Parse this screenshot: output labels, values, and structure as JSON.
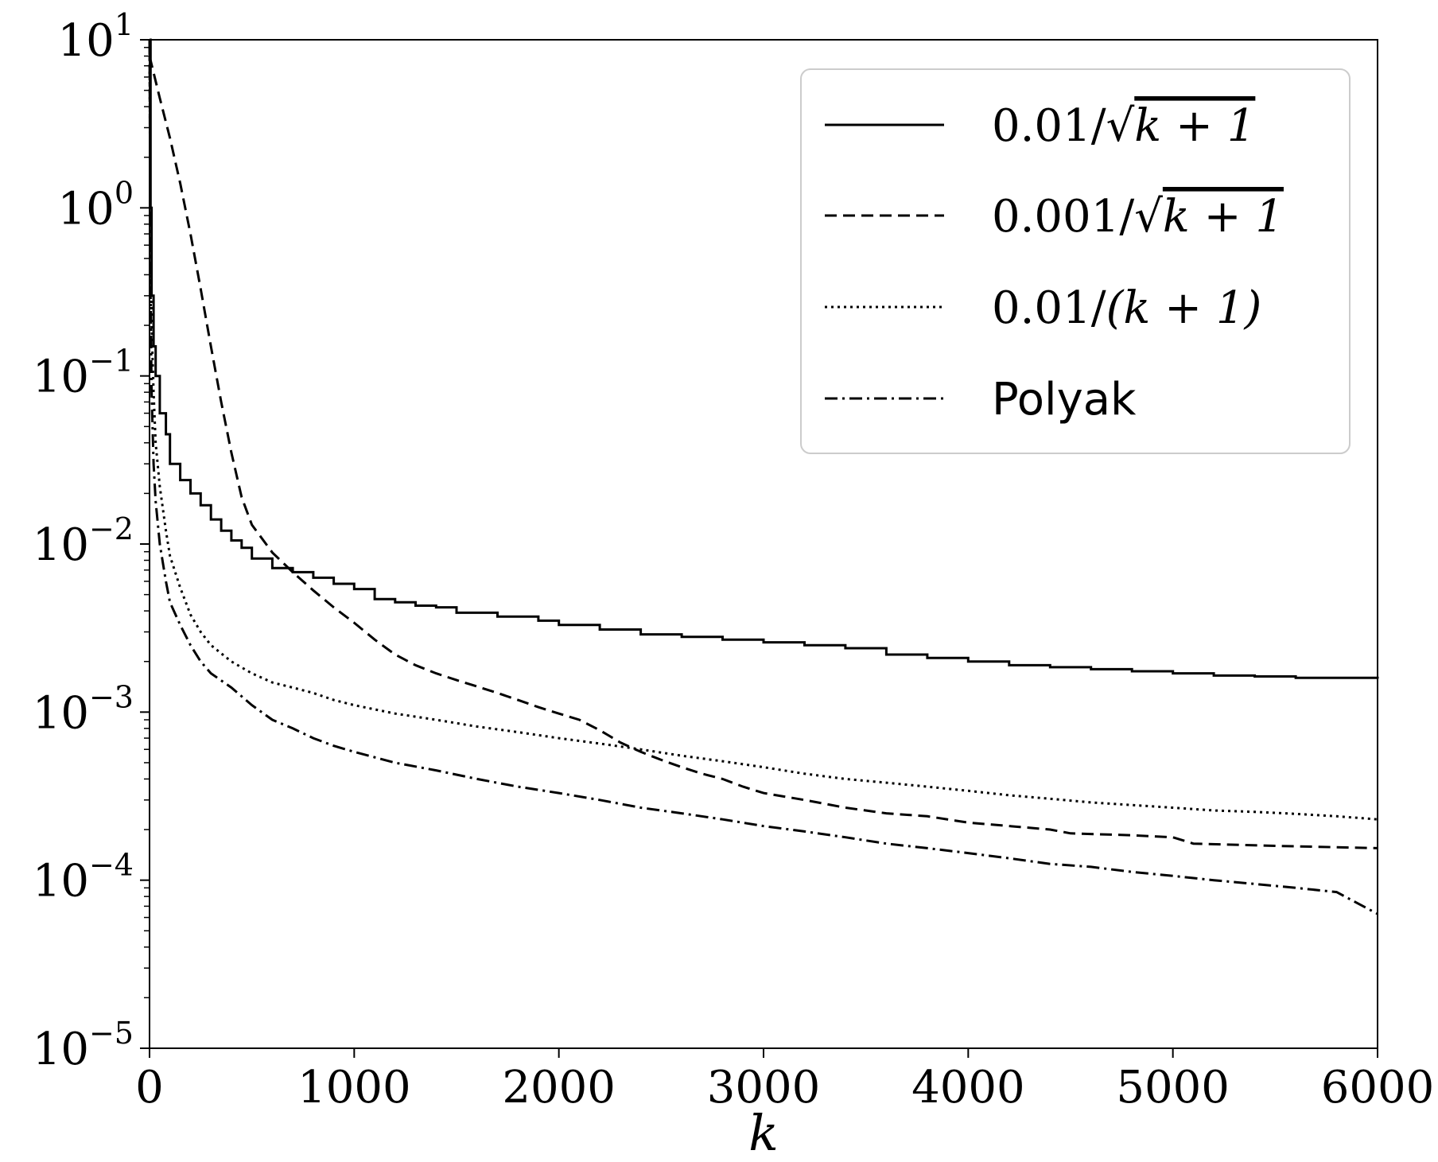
{
  "chart_data": {
    "type": "line",
    "title": "",
    "xlabel": "k",
    "ylabel": "",
    "xlim": [
      0,
      6000
    ],
    "ylim": [
      1e-05,
      10
    ],
    "yscale": "log",
    "grid": false,
    "legend_position": "top-right",
    "x_ticks": [
      0,
      1000,
      2000,
      3000,
      4000,
      5000,
      6000
    ],
    "y_ticks": [
      {
        "value": 10,
        "base": "10",
        "exp": "1"
      },
      {
        "value": 1,
        "base": "10",
        "exp": "0"
      },
      {
        "value": 0.1,
        "base": "10",
        "exp": "−1"
      },
      {
        "value": 0.01,
        "base": "10",
        "exp": "−2"
      },
      {
        "value": 0.001,
        "base": "10",
        "exp": "−3"
      },
      {
        "value": 0.0001,
        "base": "10",
        "exp": "−4"
      },
      {
        "value": 1e-05,
        "base": "10",
        "exp": "−5"
      }
    ],
    "series": [
      {
        "name": "0.01/√(k+1)",
        "legend": {
          "prefix": "0.01/",
          "radicand": "k + 1",
          "sqrt": true
        },
        "style": "solid",
        "step": true,
        "points": [
          [
            0,
            10
          ],
          [
            5,
            1.0
          ],
          [
            10,
            0.3
          ],
          [
            20,
            0.15
          ],
          [
            30,
            0.1
          ],
          [
            50,
            0.06
          ],
          [
            80,
            0.045
          ],
          [
            100,
            0.03
          ],
          [
            150,
            0.024
          ],
          [
            200,
            0.02
          ],
          [
            250,
            0.017
          ],
          [
            300,
            0.014
          ],
          [
            350,
            0.012
          ],
          [
            400,
            0.0105
          ],
          [
            450,
            0.0095
          ],
          [
            500,
            0.0082
          ],
          [
            600,
            0.0072
          ],
          [
            700,
            0.0068
          ],
          [
            800,
            0.0063
          ],
          [
            900,
            0.0058
          ],
          [
            1000,
            0.0054
          ],
          [
            1100,
            0.0047
          ],
          [
            1200,
            0.0045
          ],
          [
            1300,
            0.0043
          ],
          [
            1400,
            0.0042
          ],
          [
            1500,
            0.0039
          ],
          [
            1700,
            0.0037
          ],
          [
            1900,
            0.0035
          ],
          [
            2000,
            0.0033
          ],
          [
            2200,
            0.0031
          ],
          [
            2400,
            0.0029
          ],
          [
            2600,
            0.0028
          ],
          [
            2800,
            0.0027
          ],
          [
            3000,
            0.0026
          ],
          [
            3200,
            0.0025
          ],
          [
            3400,
            0.0024
          ],
          [
            3600,
            0.0022
          ],
          [
            3800,
            0.0021
          ],
          [
            4000,
            0.002
          ],
          [
            4200,
            0.0019
          ],
          [
            4400,
            0.00185
          ],
          [
            4600,
            0.0018
          ],
          [
            4800,
            0.00175
          ],
          [
            5000,
            0.0017
          ],
          [
            5200,
            0.00165
          ],
          [
            5400,
            0.00163
          ],
          [
            5600,
            0.0016
          ],
          [
            6000,
            0.00158
          ]
        ]
      },
      {
        "name": "0.001/√(k+1)",
        "legend": {
          "prefix": "0.001/",
          "radicand": "k + 1",
          "sqrt": true
        },
        "style": "dashed",
        "step": false,
        "points": [
          [
            0,
            8
          ],
          [
            50,
            4.5
          ],
          [
            100,
            2.6
          ],
          [
            150,
            1.4
          ],
          [
            200,
            0.7
          ],
          [
            250,
            0.33
          ],
          [
            300,
            0.15
          ],
          [
            350,
            0.07
          ],
          [
            400,
            0.035
          ],
          [
            450,
            0.019
          ],
          [
            500,
            0.013
          ],
          [
            600,
            0.0089
          ],
          [
            700,
            0.0068
          ],
          [
            800,
            0.0053
          ],
          [
            900,
            0.0042
          ],
          [
            1000,
            0.0034
          ],
          [
            1100,
            0.0027
          ],
          [
            1200,
            0.0022
          ],
          [
            1300,
            0.0019
          ],
          [
            1400,
            0.0017
          ],
          [
            1500,
            0.00155
          ],
          [
            1600,
            0.00142
          ],
          [
            1700,
            0.0013
          ],
          [
            1800,
            0.00118
          ],
          [
            1900,
            0.00107
          ],
          [
            2000,
            0.00098
          ],
          [
            2100,
            0.0009
          ],
          [
            2200,
            0.00078
          ],
          [
            2300,
            0.00066
          ],
          [
            2400,
            0.00058
          ],
          [
            2500,
            0.00052
          ],
          [
            2600,
            0.00047
          ],
          [
            2700,
            0.00043
          ],
          [
            2800,
            0.0004
          ],
          [
            2900,
            0.00036
          ],
          [
            3000,
            0.00033
          ],
          [
            3200,
            0.0003
          ],
          [
            3400,
            0.00027
          ],
          [
            3600,
            0.00025
          ],
          [
            3800,
            0.00024
          ],
          [
            4000,
            0.00022
          ],
          [
            4200,
            0.00021
          ],
          [
            4400,
            0.0002
          ],
          [
            4500,
            0.00019
          ],
          [
            4800,
            0.000185
          ],
          [
            5000,
            0.00018
          ],
          [
            5100,
            0.000165
          ],
          [
            5500,
            0.00016
          ],
          [
            6000,
            0.000155
          ]
        ]
      },
      {
        "name": "0.01/(k+1)",
        "legend": {
          "prefix": "0.01/",
          "radicand": "(k + 1)",
          "sqrt": false
        },
        "style": "dotted",
        "step": false,
        "points": [
          [
            0,
            10
          ],
          [
            5,
            0.5
          ],
          [
            10,
            0.2
          ],
          [
            20,
            0.08
          ],
          [
            30,
            0.04
          ],
          [
            50,
            0.022
          ],
          [
            80,
            0.012
          ],
          [
            100,
            0.0085
          ],
          [
            150,
            0.0055
          ],
          [
            200,
            0.0038
          ],
          [
            250,
            0.003
          ],
          [
            300,
            0.0025
          ],
          [
            400,
            0.002
          ],
          [
            500,
            0.0017
          ],
          [
            600,
            0.0015
          ],
          [
            700,
            0.0014
          ],
          [
            800,
            0.0013
          ],
          [
            900,
            0.00118
          ],
          [
            1000,
            0.0011
          ],
          [
            1200,
            0.00098
          ],
          [
            1400,
            0.0009
          ],
          [
            1600,
            0.00082
          ],
          [
            1800,
            0.00076
          ],
          [
            2000,
            0.0007
          ],
          [
            2200,
            0.00065
          ],
          [
            2400,
            0.0006
          ],
          [
            2600,
            0.00055
          ],
          [
            2800,
            0.00051
          ],
          [
            3000,
            0.00047
          ],
          [
            3200,
            0.00043
          ],
          [
            3400,
            0.0004
          ],
          [
            3600,
            0.00038
          ],
          [
            3800,
            0.00036
          ],
          [
            4000,
            0.00034
          ],
          [
            4200,
            0.00032
          ],
          [
            4400,
            0.000305
          ],
          [
            4600,
            0.00029
          ],
          [
            4800,
            0.00028
          ],
          [
            5000,
            0.00027
          ],
          [
            5200,
            0.00026
          ],
          [
            5400,
            0.000255
          ],
          [
            5600,
            0.000248
          ],
          [
            5800,
            0.00024
          ],
          [
            6000,
            0.00023
          ]
        ]
      },
      {
        "name": "Polyak",
        "legend": {
          "prefix": "Polyak",
          "radicand": "",
          "sqrt": false,
          "sans": true
        },
        "style": "dashdot",
        "step": false,
        "points": [
          [
            0,
            10
          ],
          [
            5,
            0.3
          ],
          [
            10,
            0.08
          ],
          [
            20,
            0.03
          ],
          [
            30,
            0.018
          ],
          [
            50,
            0.01
          ],
          [
            80,
            0.006
          ],
          [
            100,
            0.0045
          ],
          [
            150,
            0.0033
          ],
          [
            200,
            0.0025
          ],
          [
            250,
            0.002
          ],
          [
            300,
            0.0017
          ],
          [
            400,
            0.0014
          ],
          [
            500,
            0.0011
          ],
          [
            600,
            0.0009
          ],
          [
            700,
            0.0008
          ],
          [
            800,
            0.0007
          ],
          [
            900,
            0.00063
          ],
          [
            1000,
            0.00058
          ],
          [
            1200,
            0.0005
          ],
          [
            1400,
            0.00045
          ],
          [
            1600,
            0.0004
          ],
          [
            1800,
            0.00036
          ],
          [
            2000,
            0.00033
          ],
          [
            2200,
            0.0003
          ],
          [
            2400,
            0.00027
          ],
          [
            2600,
            0.00025
          ],
          [
            2800,
            0.00023
          ],
          [
            3000,
            0.00021
          ],
          [
            3200,
            0.000195
          ],
          [
            3400,
            0.00018
          ],
          [
            3600,
            0.000165
          ],
          [
            3800,
            0.000155
          ],
          [
            4000,
            0.000145
          ],
          [
            4200,
            0.000135
          ],
          [
            4400,
            0.000125
          ],
          [
            4600,
            0.00012
          ],
          [
            4800,
            0.000112
          ],
          [
            5000,
            0.000106
          ],
          [
            5200,
            0.0001
          ],
          [
            5400,
            9.5e-05
          ],
          [
            5600,
            9e-05
          ],
          [
            5800,
            8.5e-05
          ],
          [
            6000,
            6.3e-05
          ]
        ]
      }
    ]
  }
}
